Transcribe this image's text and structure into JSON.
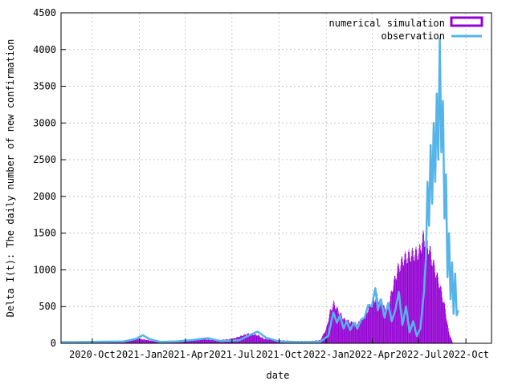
{
  "chart_data": {
    "type": "bar",
    "xlabel": "date",
    "ylabel": "Delta I(t): The daily number of new confirmation",
    "ylim": [
      0,
      4500
    ],
    "y_ticks": [
      0,
      500,
      1000,
      1500,
      2000,
      2500,
      3000,
      3500,
      4000,
      4500
    ],
    "x_tick_labels": [
      "2020-Oct",
      "2021-Jan",
      "2021-Apr",
      "2021-Jul",
      "2021-Oct",
      "2022-Jan",
      "2022-Apr",
      "2022-Jul",
      "2022-Oct"
    ],
    "xlim": [
      "2020-08-01",
      "2022-11-20"
    ],
    "grid": true,
    "legend_position": "top-right",
    "series": [
      {
        "name": "numerical simulation",
        "style": "bars",
        "color": "#9400d3",
        "points": [
          [
            "2020-08-01",
            10
          ],
          [
            "2020-09-01",
            15
          ],
          [
            "2020-10-01",
            18
          ],
          [
            "2020-11-01",
            20
          ],
          [
            "2020-12-01",
            30
          ],
          [
            "2021-01-01",
            60
          ],
          [
            "2021-01-15",
            45
          ],
          [
            "2021-02-01",
            25
          ],
          [
            "2021-03-01",
            30
          ],
          [
            "2021-04-01",
            45
          ],
          [
            "2021-05-01",
            60
          ],
          [
            "2021-05-20",
            45
          ],
          [
            "2021-06-01",
            40
          ],
          [
            "2021-07-01",
            60
          ],
          [
            "2021-08-01",
            130
          ],
          [
            "2021-08-20",
            110
          ],
          [
            "2021-09-01",
            60
          ],
          [
            "2021-10-01",
            40
          ],
          [
            "2021-11-01",
            30
          ],
          [
            "2021-12-01",
            30
          ],
          [
            "2021-12-20",
            40
          ],
          [
            "2022-01-01",
            200
          ],
          [
            "2022-01-08",
            420
          ],
          [
            "2022-01-15",
            540
          ],
          [
            "2022-01-25",
            430
          ],
          [
            "2022-02-05",
            320
          ],
          [
            "2022-02-20",
            280
          ],
          [
            "2022-03-01",
            260
          ],
          [
            "2022-03-10",
            300
          ],
          [
            "2022-03-20",
            420
          ],
          [
            "2022-04-01",
            570
          ],
          [
            "2022-04-10",
            640
          ],
          [
            "2022-04-20",
            500
          ],
          [
            "2022-05-01",
            450
          ],
          [
            "2022-05-10",
            750
          ],
          [
            "2022-05-20",
            1000
          ],
          [
            "2022-06-01",
            1150
          ],
          [
            "2022-06-15",
            1200
          ],
          [
            "2022-07-01",
            1230
          ],
          [
            "2022-07-10",
            1450
          ],
          [
            "2022-07-20",
            1300
          ],
          [
            "2022-08-01",
            1000
          ],
          [
            "2022-08-10",
            800
          ],
          [
            "2022-08-20",
            500
          ],
          [
            "2022-08-28",
            150
          ],
          [
            "2022-09-05",
            0
          ]
        ]
      },
      {
        "name": "observation",
        "style": "line",
        "color": "#56b4e9",
        "points": [
          [
            "2020-08-01",
            15
          ],
          [
            "2020-10-01",
            20
          ],
          [
            "2020-12-01",
            25
          ],
          [
            "2020-12-25",
            60
          ],
          [
            "2021-01-08",
            110
          ],
          [
            "2021-01-20",
            60
          ],
          [
            "2021-02-10",
            20
          ],
          [
            "2021-03-15",
            25
          ],
          [
            "2021-04-15",
            45
          ],
          [
            "2021-05-15",
            70
          ],
          [
            "2021-06-10",
            30
          ],
          [
            "2021-07-15",
            40
          ],
          [
            "2021-08-01",
            100
          ],
          [
            "2021-08-20",
            160
          ],
          [
            "2021-09-05",
            80
          ],
          [
            "2021-10-01",
            25
          ],
          [
            "2021-11-15",
            15
          ],
          [
            "2021-12-20",
            20
          ],
          [
            "2022-01-05",
            100
          ],
          [
            "2022-01-15",
            420
          ],
          [
            "2022-01-22",
            280
          ],
          [
            "2022-01-28",
            380
          ],
          [
            "2022-02-04",
            200
          ],
          [
            "2022-02-10",
            300
          ],
          [
            "2022-02-17",
            180
          ],
          [
            "2022-02-24",
            280
          ],
          [
            "2022-03-03",
            200
          ],
          [
            "2022-03-10",
            320
          ],
          [
            "2022-03-17",
            350
          ],
          [
            "2022-03-24",
            520
          ],
          [
            "2022-03-31",
            500
          ],
          [
            "2022-04-07",
            750
          ],
          [
            "2022-04-12",
            450
          ],
          [
            "2022-04-18",
            600
          ],
          [
            "2022-04-25",
            350
          ],
          [
            "2022-05-02",
            550
          ],
          [
            "2022-05-09",
            300
          ],
          [
            "2022-05-16",
            450
          ],
          [
            "2022-05-23",
            700
          ],
          [
            "2022-05-30",
            250
          ],
          [
            "2022-06-06",
            500
          ],
          [
            "2022-06-13",
            150
          ],
          [
            "2022-06-20",
            300
          ],
          [
            "2022-06-27",
            100
          ],
          [
            "2022-07-04",
            200
          ],
          [
            "2022-07-11",
            700
          ],
          [
            "2022-07-15",
            1200
          ],
          [
            "2022-07-18",
            2200
          ],
          [
            "2022-07-21",
            1600
          ],
          [
            "2022-07-24",
            2700
          ],
          [
            "2022-07-27",
            1900
          ],
          [
            "2022-07-30",
            3000
          ],
          [
            "2022-08-02",
            2200
          ],
          [
            "2022-08-05",
            3400
          ],
          [
            "2022-08-08",
            2500
          ],
          [
            "2022-08-11",
            4150
          ],
          [
            "2022-08-14",
            2600
          ],
          [
            "2022-08-17",
            3300
          ],
          [
            "2022-08-20",
            1700
          ],
          [
            "2022-08-23",
            2300
          ],
          [
            "2022-08-26",
            900
          ],
          [
            "2022-08-29",
            1500
          ],
          [
            "2022-09-01",
            600
          ],
          [
            "2022-09-04",
            1100
          ],
          [
            "2022-09-07",
            400
          ],
          [
            "2022-09-10",
            950
          ],
          [
            "2022-09-13",
            380
          ],
          [
            "2022-09-16",
            450
          ]
        ]
      }
    ]
  }
}
